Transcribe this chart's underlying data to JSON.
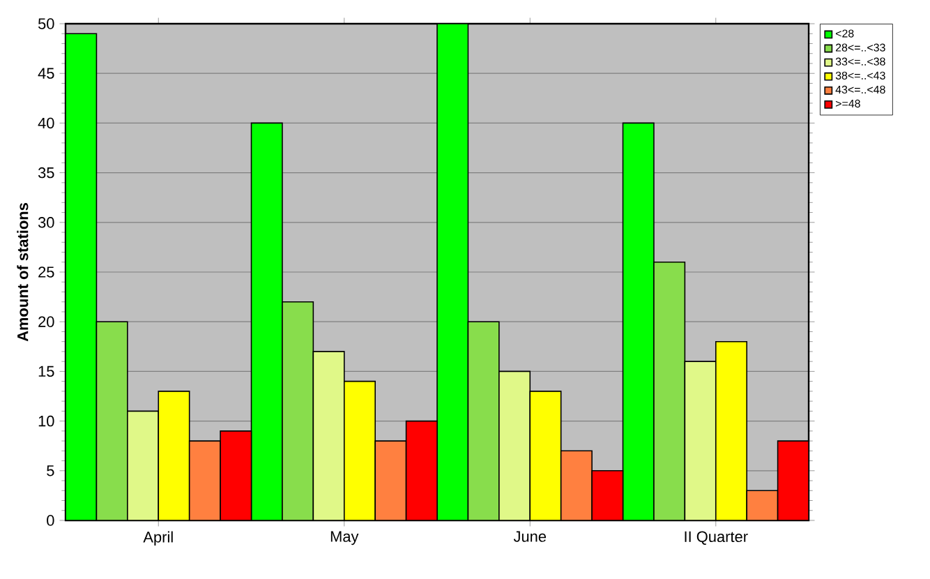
{
  "chart_data": {
    "type": "bar",
    "ylabel": "Amount of stations",
    "categories": [
      "April",
      "May",
      "June",
      "II Quarter"
    ],
    "series": [
      {
        "name": "<28",
        "color": "#00ff00",
        "values": [
          49,
          40,
          50,
          40
        ]
      },
      {
        "name": "28<=..<33",
        "color": "#88dd4c",
        "values": [
          20,
          22,
          20,
          26
        ]
      },
      {
        "name": "33<=..<38",
        "color": "#e0f888",
        "values": [
          11,
          17,
          15,
          16
        ]
      },
      {
        "name": "38<=..<43",
        "color": "#ffff00",
        "values": [
          13,
          14,
          13,
          18
        ]
      },
      {
        "name": "43<=..<48",
        "color": "#ff8040",
        "values": [
          8,
          8,
          7,
          3
        ]
      },
      {
        "name": ">=48",
        "color": "#ff0000",
        "values": [
          9,
          10,
          5,
          8
        ]
      }
    ],
    "ylim": [
      0,
      50
    ],
    "yticks": [
      0,
      5,
      10,
      15,
      20,
      25,
      30,
      35,
      40,
      45,
      50
    ],
    "grid": "y",
    "legend": "top right"
  }
}
